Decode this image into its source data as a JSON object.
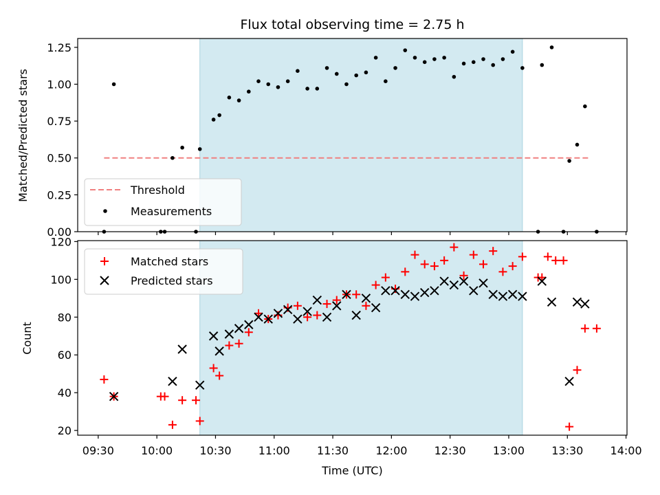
{
  "chart_data": [
    {
      "type": "scatter",
      "title": "Flux total observing time = 2.75 h",
      "ylabel": "Matched/Predicted stars",
      "xlabel": "",
      "ylim": [
        0,
        1.31
      ],
      "yticks": [
        "0.00",
        "0.25",
        "0.50",
        "0.75",
        "1.00",
        "1.25"
      ],
      "shaded_region": {
        "start": "10:22",
        "end": "13:07",
        "color": "#d3eaf1"
      },
      "threshold": {
        "name": "Threshold",
        "value": 0.5,
        "from": "09:33",
        "to": "13:41",
        "color": "#f08080"
      },
      "legend": {
        "placement": "lower-left",
        "entries": [
          "Threshold",
          "Measurements"
        ]
      },
      "series": [
        {
          "name": "Measurements",
          "marker": "dot",
          "color": "#000000",
          "points": [
            [
              "09:33",
              0.0
            ],
            [
              "09:38",
              1.0
            ],
            [
              "10:02",
              0.0
            ],
            [
              "10:04",
              0.0
            ],
            [
              "10:08",
              0.5
            ],
            [
              "10:13",
              0.57
            ],
            [
              "10:20",
              0.0
            ],
            [
              "10:22",
              0.56
            ],
            [
              "10:29",
              0.76
            ],
            [
              "10:32",
              0.79
            ],
            [
              "10:37",
              0.91
            ],
            [
              "10:42",
              0.89
            ],
            [
              "10:47",
              0.95
            ],
            [
              "10:52",
              1.02
            ],
            [
              "10:57",
              1.0
            ],
            [
              "11:02",
              0.98
            ],
            [
              "11:07",
              1.02
            ],
            [
              "11:12",
              1.09
            ],
            [
              "11:17",
              0.97
            ],
            [
              "11:22",
              0.97
            ],
            [
              "11:27",
              1.11
            ],
            [
              "11:32",
              1.07
            ],
            [
              "11:37",
              1.0
            ],
            [
              "11:42",
              1.06
            ],
            [
              "11:47",
              1.08
            ],
            [
              "11:52",
              1.18
            ],
            [
              "11:57",
              1.02
            ],
            [
              "12:02",
              1.11
            ],
            [
              "12:07",
              1.23
            ],
            [
              "12:12",
              1.18
            ],
            [
              "12:17",
              1.15
            ],
            [
              "12:22",
              1.17
            ],
            [
              "12:27",
              1.18
            ],
            [
              "12:32",
              1.05
            ],
            [
              "12:37",
              1.14
            ],
            [
              "12:42",
              1.15
            ],
            [
              "12:47",
              1.17
            ],
            [
              "12:52",
              1.13
            ],
            [
              "12:57",
              1.17
            ],
            [
              "13:02",
              1.22
            ],
            [
              "13:07",
              1.11
            ],
            [
              "13:15",
              0.0
            ],
            [
              "13:17",
              1.13
            ],
            [
              "13:22",
              1.25
            ],
            [
              "13:28",
              0.0
            ],
            [
              "13:31",
              0.48
            ],
            [
              "13:35",
              0.59
            ],
            [
              "13:39",
              0.85
            ],
            [
              "13:45",
              0.0
            ]
          ]
        }
      ]
    },
    {
      "type": "scatter",
      "title": "",
      "ylabel": "Count",
      "xlabel": "Time (UTC)",
      "ylim": [
        17.5,
        120.5
      ],
      "yticks": [
        "20",
        "40",
        "60",
        "80",
        "100",
        "120"
      ],
      "xticks": [
        "09:30",
        "10:00",
        "10:30",
        "11:00",
        "11:30",
        "12:00",
        "12:30",
        "13:00",
        "13:30",
        "14:00"
      ],
      "shaded_region": {
        "start": "10:22",
        "end": "13:07",
        "color": "#d3eaf1"
      },
      "legend": {
        "placement": "upper-left",
        "entries": [
          "Matched stars",
          "Predicted stars"
        ]
      },
      "series": [
        {
          "name": "Matched stars",
          "marker": "plus",
          "color": "#ff0000",
          "points": [
            [
              "09:33",
              47
            ],
            [
              "09:38",
              38
            ],
            [
              "10:02",
              38
            ],
            [
              "10:04",
              38
            ],
            [
              "10:08",
              23
            ],
            [
              "10:13",
              36
            ],
            [
              "10:20",
              36
            ],
            [
              "10:22",
              25
            ],
            [
              "10:29",
              53
            ],
            [
              "10:32",
              49
            ],
            [
              "10:37",
              65
            ],
            [
              "10:42",
              66
            ],
            [
              "10:47",
              72
            ],
            [
              "10:52",
              82
            ],
            [
              "10:57",
              79
            ],
            [
              "11:02",
              81
            ],
            [
              "11:07",
              85
            ],
            [
              "11:12",
              86
            ],
            [
              "11:17",
              80
            ],
            [
              "11:22",
              81
            ],
            [
              "11:27",
              87
            ],
            [
              "11:32",
              89
            ],
            [
              "11:37",
              92
            ],
            [
              "11:42",
              92
            ],
            [
              "11:47",
              86
            ],
            [
              "11:52",
              97
            ],
            [
              "11:57",
              101
            ],
            [
              "12:02",
              95
            ],
            [
              "12:07",
              104
            ],
            [
              "12:12",
              113
            ],
            [
              "12:17",
              108
            ],
            [
              "12:22",
              107
            ],
            [
              "12:27",
              110
            ],
            [
              "12:32",
              117
            ],
            [
              "12:37",
              102
            ],
            [
              "12:42",
              113
            ],
            [
              "12:47",
              108
            ],
            [
              "12:52",
              115
            ],
            [
              "12:57",
              104
            ],
            [
              "13:02",
              107
            ],
            [
              "13:07",
              112
            ],
            [
              "13:15",
              101
            ],
            [
              "13:17",
              101
            ],
            [
              "13:20",
              112
            ],
            [
              "13:24",
              110
            ],
            [
              "13:28",
              110
            ],
            [
              "13:31",
              22
            ],
            [
              "13:35",
              52
            ],
            [
              "13:39",
              74
            ],
            [
              "13:45",
              74
            ]
          ]
        },
        {
          "name": "Predicted stars",
          "marker": "x",
          "color": "#000000",
          "points": [
            [
              "09:38",
              38
            ],
            [
              "10:08",
              46
            ],
            [
              "10:13",
              63
            ],
            [
              "10:22",
              44
            ],
            [
              "10:29",
              70
            ],
            [
              "10:32",
              62
            ],
            [
              "10:37",
              71
            ],
            [
              "10:42",
              74
            ],
            [
              "10:47",
              76
            ],
            [
              "10:52",
              80
            ],
            [
              "10:57",
              79
            ],
            [
              "11:02",
              82
            ],
            [
              "11:07",
              84
            ],
            [
              "11:12",
              79
            ],
            [
              "11:17",
              83
            ],
            [
              "11:22",
              89
            ],
            [
              "11:27",
              80
            ],
            [
              "11:32",
              86
            ],
            [
              "11:37",
              92
            ],
            [
              "11:42",
              81
            ],
            [
              "11:47",
              90
            ],
            [
              "11:52",
              85
            ],
            [
              "11:57",
              94
            ],
            [
              "12:02",
              94
            ],
            [
              "12:07",
              92
            ],
            [
              "12:12",
              91
            ],
            [
              "12:17",
              93
            ],
            [
              "12:22",
              94
            ],
            [
              "12:27",
              99
            ],
            [
              "12:32",
              97
            ],
            [
              "12:37",
              99
            ],
            [
              "12:42",
              94
            ],
            [
              "12:47",
              98
            ],
            [
              "12:52",
              92
            ],
            [
              "12:57",
              91
            ],
            [
              "13:02",
              92
            ],
            [
              "13:07",
              91
            ],
            [
              "13:17",
              99
            ],
            [
              "13:22",
              88
            ],
            [
              "13:31",
              46
            ],
            [
              "13:35",
              88
            ],
            [
              "13:39",
              87
            ]
          ]
        }
      ]
    }
  ]
}
